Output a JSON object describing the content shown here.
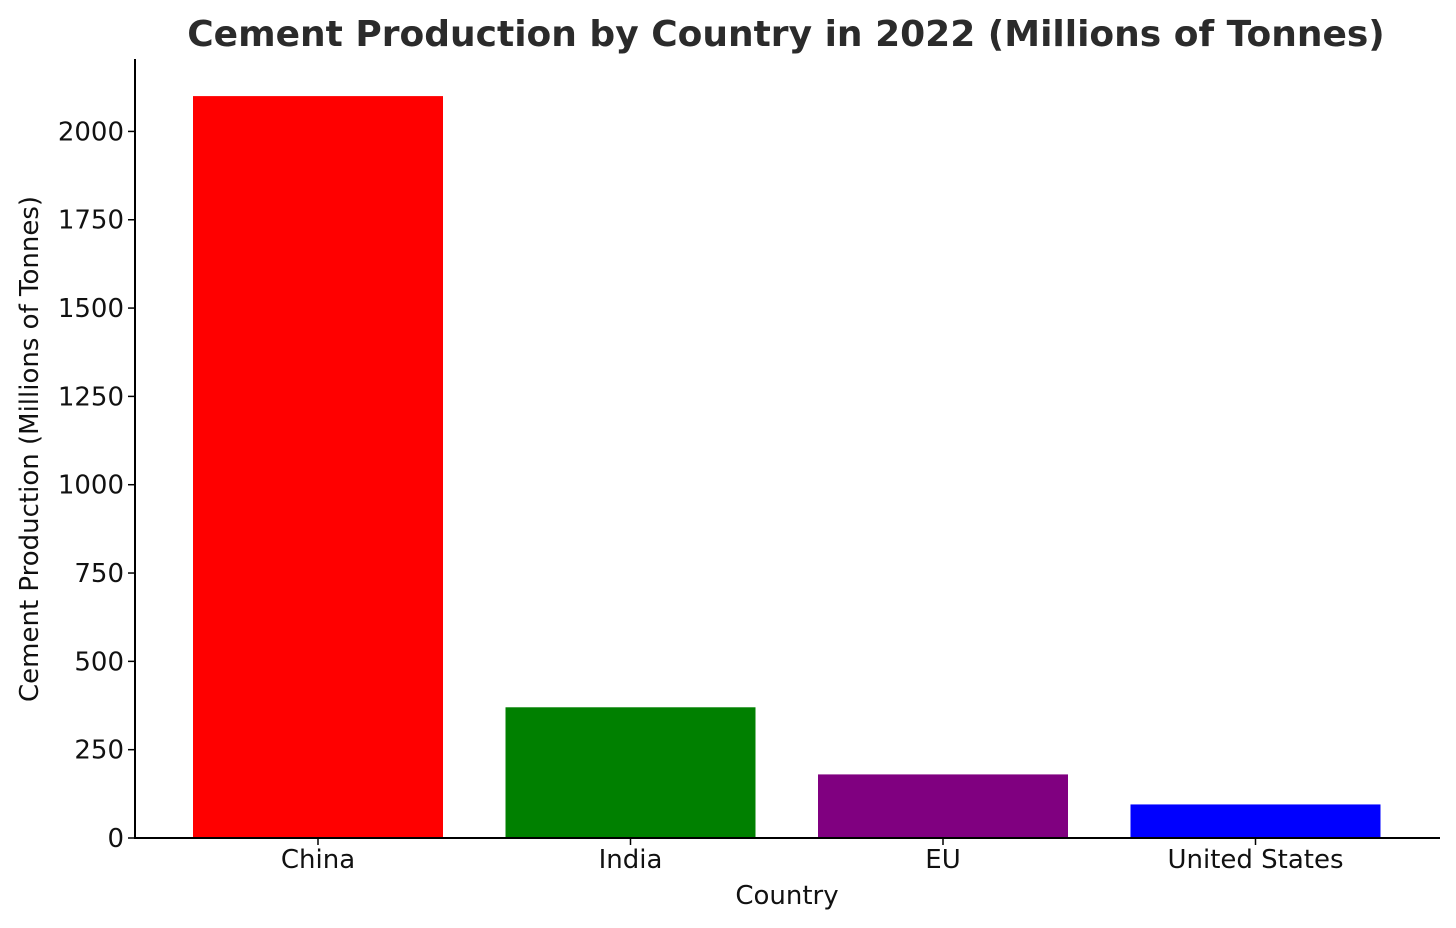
{
  "chart_data": {
    "type": "bar",
    "title": "Cement Production by Country in 2022 (Millions of Tonnes)",
    "xlabel": "Country",
    "ylabel": "Cement Production (Millions of Tonnes)",
    "categories": [
      "China",
      "India",
      "EU",
      "United States"
    ],
    "values": [
      2100,
      370,
      180,
      95
    ],
    "colors": [
      "#ff0000",
      "#008000",
      "#800080",
      "#0000ff"
    ],
    "yticks": [
      0,
      250,
      500,
      750,
      1000,
      1250,
      1500,
      1750,
      2000
    ],
    "ylim": [
      0,
      2205
    ],
    "grid": false,
    "legend": "none"
  }
}
